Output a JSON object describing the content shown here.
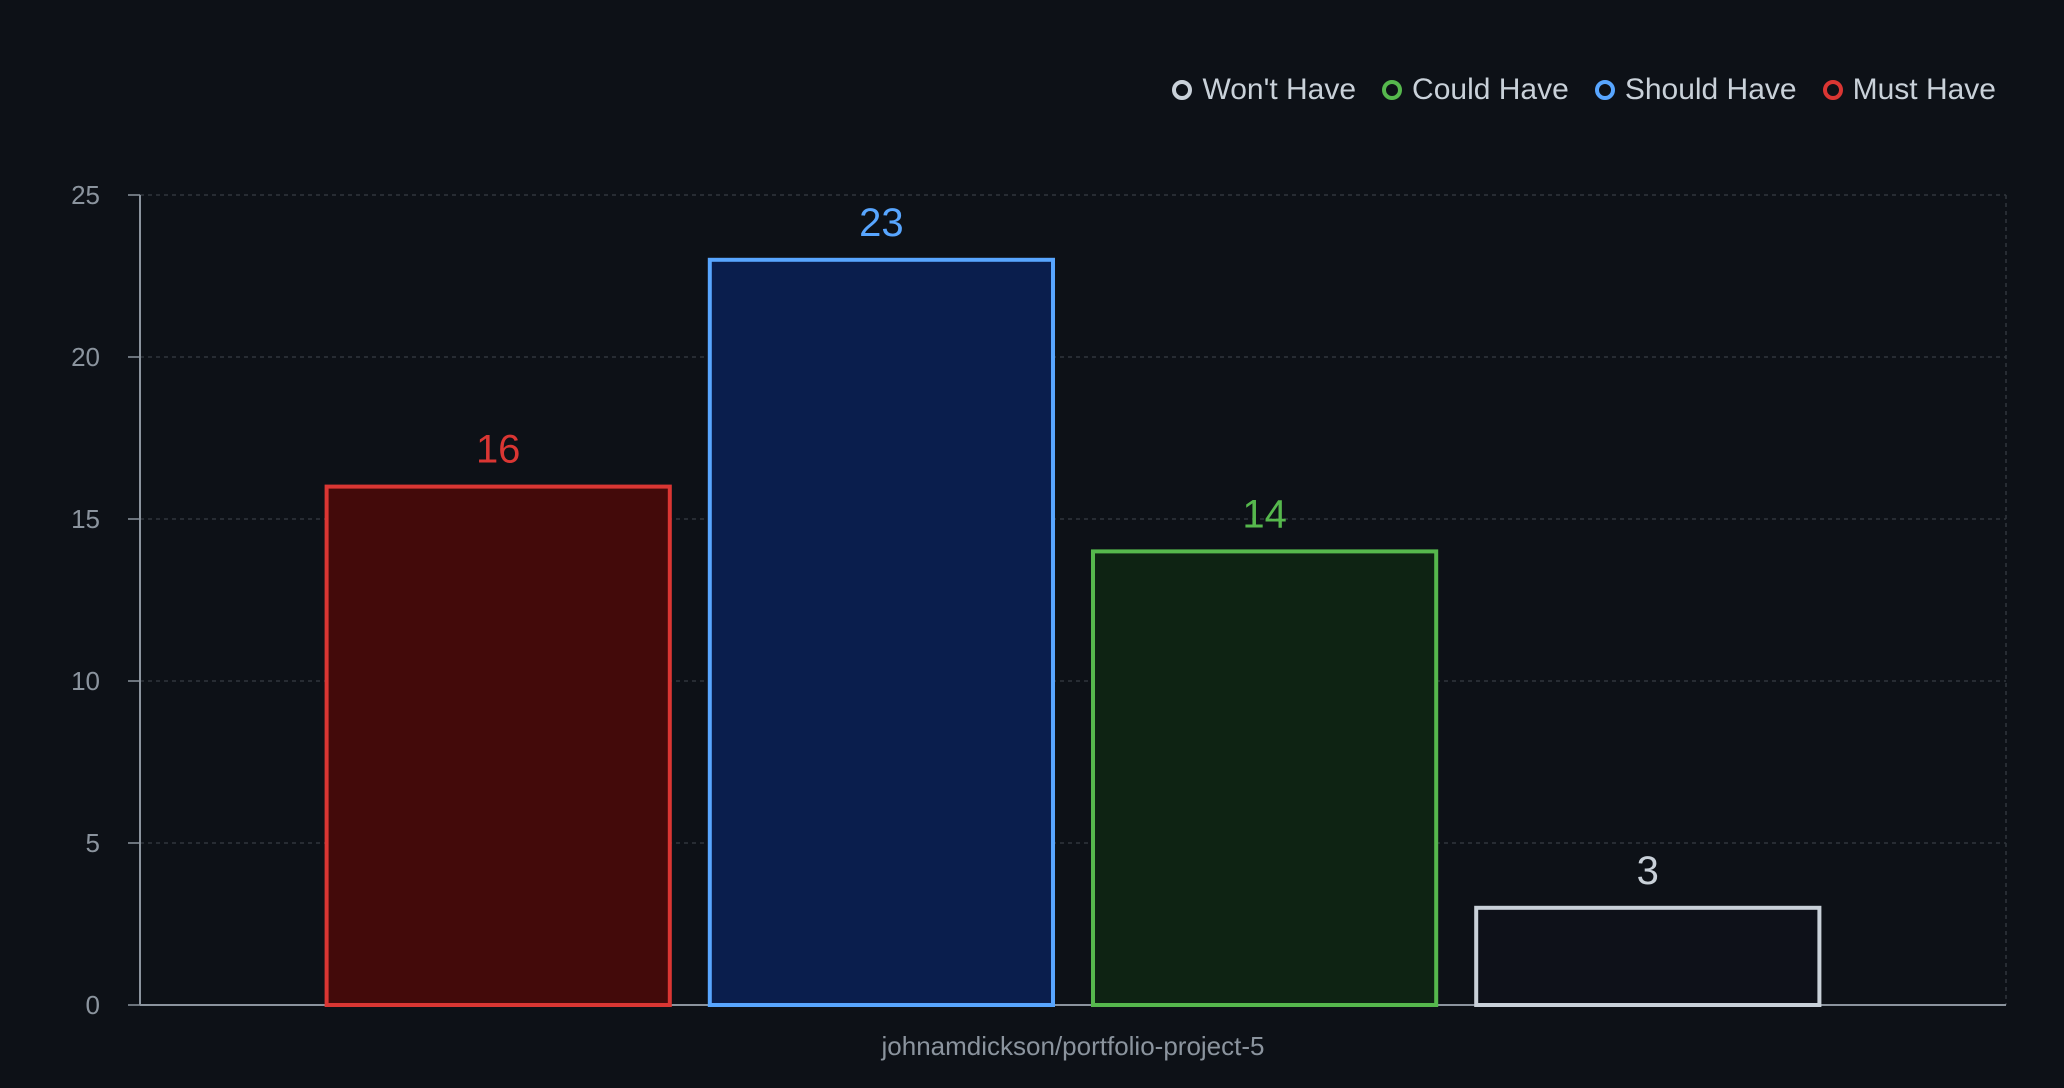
{
  "chart_data": {
    "type": "bar",
    "categories": [
      "johnamdickson/portfolio-project-5"
    ],
    "series": [
      {
        "name": "Must Have",
        "values": [
          16
        ],
        "color": "#da3633",
        "fill": "#430a0a"
      },
      {
        "name": "Should Have",
        "values": [
          23
        ],
        "color": "#58a6ff",
        "fill": "#0a1e4d"
      },
      {
        "name": "Could Have",
        "values": [
          14
        ],
        "color": "#56b84d",
        "fill": "#0e2313"
      },
      {
        "name": "Won't Have",
        "values": [
          3
        ],
        "color": "#c9d1d9",
        "fill": "#0e1119"
      }
    ],
    "legend_order": [
      "Won't Have",
      "Could Have",
      "Should Have",
      "Must Have"
    ],
    "legend_position": "top-right",
    "ylim": [
      0,
      25
    ],
    "y_ticks": [
      0,
      5,
      10,
      15,
      20,
      25
    ],
    "grid": true,
    "title": "",
    "xlabel": "",
    "ylabel": ""
  },
  "colors": {
    "background": "#0d1117",
    "grid": "#30363d",
    "axis": "#8b949e"
  }
}
